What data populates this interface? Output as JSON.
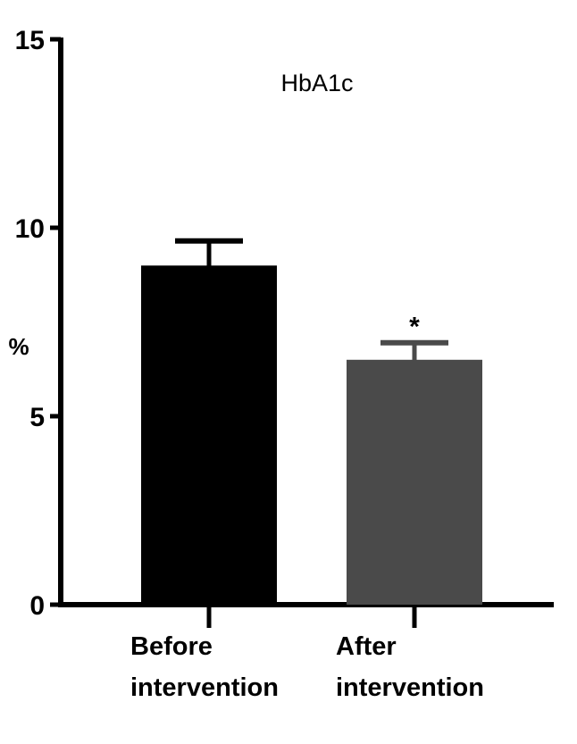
{
  "chart_data": {
    "type": "bar",
    "title": "HbA1c",
    "ylabel": "%",
    "xlabel": "",
    "ylim": [
      0,
      15
    ],
    "yticks": [
      0,
      5,
      10,
      15
    ],
    "ytick_labels": [
      "0",
      "5",
      "10",
      "15"
    ],
    "grid": false,
    "legend": "none",
    "categories": [
      [
        "Before",
        "intervention"
      ],
      [
        "After",
        "intervention"
      ]
    ],
    "values": [
      8.95,
      6.45
    ],
    "error_upper": [
      0.7,
      0.5
    ],
    "annotations": [
      "",
      "*"
    ],
    "colors": [
      "#000000",
      "#4a4a4a"
    ]
  }
}
